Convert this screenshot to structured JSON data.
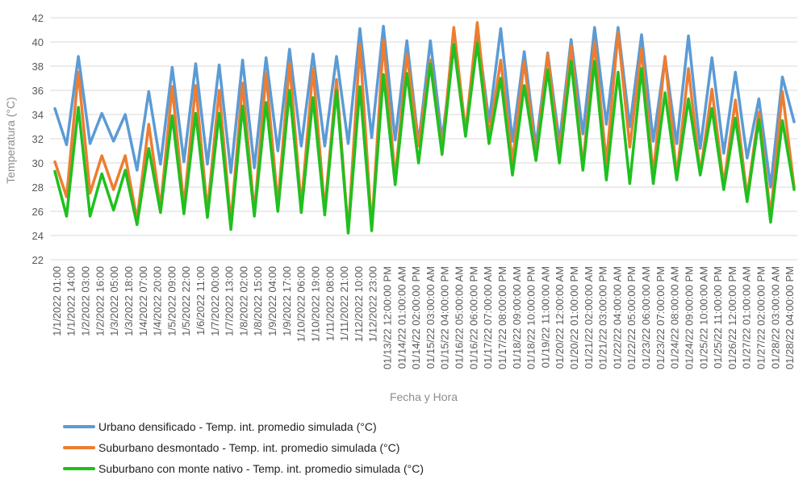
{
  "chart_data": {
    "type": "line",
    "title": "",
    "xlabel": "Fecha y Hora",
    "ylabel": "Temperatura  (°C)",
    "ylim": [
      22,
      42
    ],
    "yticks": [
      22,
      24,
      26,
      28,
      30,
      32,
      34,
      36,
      38,
      40,
      42
    ],
    "grid": true,
    "legend_position": "bottom-left",
    "x_tick_labels": [
      "1/1/2022 01:00",
      "1/1/2022 14:00",
      "1/2/2022 03:00",
      "1/2/2022 16:00",
      "1/3/2022 05:00",
      "1/3/2022 18:00",
      "1/4/2022 07:00",
      "1/4/2022 20:00",
      "1/5/2022 09:00",
      "1/5/2022 22:00",
      "1/6/2022 11:00",
      "1/7/2022 00:00",
      "1/7/2022 13:00",
      "1/8/2022 02:00",
      "1/8/2022 15:00",
      "1/9/2022 04:00",
      "1/9/2022 17:00",
      "1/10/2022 06:00",
      "1/10/2022 19:00",
      "1/11/2022 08:00",
      "1/11/2022 21:00",
      "1/12/2022 10:00",
      "1/12/2022 23:00",
      "01/13/22 12:00:00 PM",
      "01/14/22 01:00:00 AM",
      "01/14/22 02:00:00 PM",
      "01/15/22 03:00:00 AM",
      "01/15/22 04:00:00 PM",
      "01/16/22 05:00:00 AM",
      "01/16/22 06:00:00 PM",
      "01/17/22 07:00:00 AM",
      "01/17/22 08:00:00 PM",
      "01/18/22 09:00:00 AM",
      "01/18/22 10:00:00 PM",
      "01/19/22 11:00:00 AM",
      "01/20/22 12:00:00 AM",
      "01/20/22 01:00:00 PM",
      "01/21/22 02:00:00 AM",
      "01/21/22 03:00:00 PM",
      "01/22/22 04:00:00 AM",
      "01/22/22 05:00:00 PM",
      "01/23/22 06:00:00 AM",
      "01/23/22 07:00:00 PM",
      "01/24/22 08:00:00 AM",
      "01/24/22 09:00:00 PM",
      "01/25/22 10:00:00 AM",
      "01/25/22 11:00:00 PM",
      "01/26/22 12:00:00 PM",
      "01/27/22 01:00:00 AM",
      "01/27/22 02:00:00 PM",
      "01/28/22 03:00:00 AM",
      "01/28/22 04:00:00 PM"
    ],
    "series": [
      {
        "name": "Urbano densificado - Temp. int. promedio simulada (°C)",
        "color": "#5b9bd5",
        "values": [
          34.5,
          31.5,
          38.8,
          31.6,
          34.1,
          31.8,
          34.0,
          29.4,
          35.9,
          29.9,
          37.9,
          30.1,
          38.2,
          29.9,
          38.1,
          29.2,
          38.5,
          29.6,
          38.7,
          31.0,
          39.4,
          31.4,
          39.0,
          31.4,
          38.8,
          31.6,
          41.1,
          32.1,
          41.3,
          31.9,
          40.1,
          31.6,
          40.1,
          31.9,
          39.7,
          32.3,
          41.0,
          33.4,
          41.1,
          31.8,
          39.2,
          31.4,
          39.1,
          31.7,
          40.2,
          32.4,
          41.2,
          33.2,
          41.2,
          33.0,
          40.6,
          31.8,
          38.7,
          31.6,
          40.5,
          31.2,
          38.7,
          30.8,
          37.5,
          30.4,
          35.3,
          28.0,
          37.1,
          33.4
        ]
      },
      {
        "name": "Suburbano desmontado - Temp. int. promedio simulada (°C)",
        "color": "#ed7d31",
        "values": [
          30.1,
          27.2,
          37.5,
          27.5,
          30.6,
          27.8,
          30.6,
          25.3,
          33.2,
          26.3,
          36.3,
          26.4,
          36.4,
          26.0,
          36.0,
          25.0,
          36.6,
          25.9,
          37.4,
          26.6,
          38.2,
          26.4,
          37.8,
          26.1,
          36.9,
          24.3,
          39.8,
          24.5,
          40.1,
          28.7,
          39.0,
          31.4,
          38.5,
          31.0,
          41.2,
          32.6,
          41.6,
          32.2,
          38.5,
          30.1,
          38.4,
          30.4,
          39.0,
          30.6,
          39.7,
          29.7,
          40.0,
          30.0,
          40.8,
          31.3,
          39.4,
          29.0,
          38.8,
          28.9,
          37.8,
          29.1,
          36.1,
          28.2,
          35.2,
          27.2,
          34.2,
          25.6,
          35.9,
          28.0
        ]
      },
      {
        "name": "Suburbano con monte nativo - Temp. int. promedio simulada (°C)",
        "color": "#1fc01f",
        "values": [
          29.3,
          25.6,
          34.6,
          25.6,
          29.1,
          26.1,
          29.4,
          24.9,
          31.2,
          25.9,
          33.9,
          25.8,
          34.1,
          25.5,
          34.1,
          24.5,
          34.7,
          25.6,
          35.0,
          26.0,
          36.0,
          25.9,
          35.4,
          25.7,
          36.0,
          24.2,
          36.3,
          24.4,
          37.3,
          28.2,
          37.4,
          30.0,
          38.2,
          30.7,
          39.8,
          32.2,
          39.9,
          31.6,
          37.0,
          29.0,
          36.4,
          30.2,
          37.7,
          30.0,
          38.4,
          29.4,
          38.4,
          28.6,
          37.5,
          28.3,
          37.8,
          28.3,
          35.8,
          28.6,
          35.3,
          29.0,
          34.5,
          27.8,
          33.7,
          26.8,
          33.6,
          25.1,
          33.5,
          27.8
        ]
      }
    ]
  }
}
